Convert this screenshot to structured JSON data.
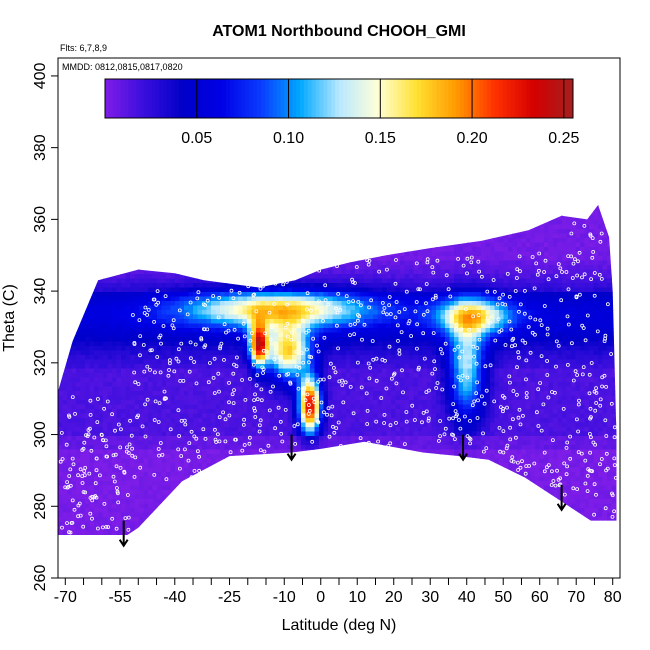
{
  "chart_data": {
    "type": "heatmap",
    "title": "ATOM1 Northbound CHOOH_GMI",
    "xlabel": "Latitude (deg N)",
    "ylabel": "Theta (C)",
    "annotation_flights": "Flts: 6,7,8,9",
    "annotation_dates": "MMDD: 0812,0815,0817,0820",
    "xlim": [
      -72,
      82
    ],
    "ylim": [
      260,
      405
    ],
    "x_ticks": [
      -70,
      -55,
      -40,
      -25,
      -10,
      0,
      10,
      20,
      30,
      40,
      50,
      60,
      70,
      80
    ],
    "x_tick_labels": [
      "-70",
      "-55",
      "-40",
      "-25",
      "-10",
      "0",
      "10",
      "20",
      "30",
      "40",
      "50",
      "60",
      "70",
      "80"
    ],
    "x_minor_ticks": [
      -65,
      -60,
      -50,
      -45,
      -35,
      -30,
      -20,
      -15,
      -5,
      5,
      15,
      25,
      35,
      45,
      55,
      65,
      75
    ],
    "y_ticks": [
      260,
      280,
      300,
      320,
      340,
      360,
      380,
      400
    ],
    "y_tick_labels": [
      "260",
      "280",
      "300",
      "320",
      "340",
      "360",
      "380",
      "400"
    ],
    "colorbar": {
      "min": 0.0,
      "max": 0.255,
      "ticks": [
        0.05,
        0.1,
        0.15,
        0.2,
        0.25
      ],
      "tick_labels": [
        "0.05",
        "0.10",
        "0.15",
        "0.20",
        "0.25"
      ],
      "colors": [
        "#7F1DE8",
        "#3A0EDD",
        "#0000C8",
        "#0000E6",
        "#0A3CFF",
        "#00A8FF",
        "#B8E8FF",
        "#FFFFD8",
        "#FFE030",
        "#FF9A00",
        "#FF3000",
        "#D40000",
        "#A52020"
      ]
    },
    "field_lower_boundary": [
      [
        -72,
        272
      ],
      [
        -53,
        272
      ],
      [
        -50,
        274
      ],
      [
        -38,
        287
      ],
      [
        -25,
        294
      ],
      [
        -8,
        295
      ],
      [
        0,
        296
      ],
      [
        12,
        298
      ],
      [
        28,
        295
      ],
      [
        38,
        294
      ],
      [
        46,
        293
      ],
      [
        56,
        288
      ],
      [
        68,
        280
      ],
      [
        74,
        276
      ],
      [
        80,
        276
      ]
    ],
    "field_upper_boundary": [
      [
        -72,
        312
      ],
      [
        -68,
        326
      ],
      [
        -61,
        343
      ],
      [
        -50,
        346
      ],
      [
        -40,
        345
      ],
      [
        -32,
        343
      ],
      [
        -17,
        341
      ],
      [
        -7,
        343
      ],
      [
        0,
        346
      ],
      [
        8,
        348
      ],
      [
        18,
        350
      ],
      [
        30,
        352
      ],
      [
        44,
        354
      ],
      [
        57,
        357
      ],
      [
        66,
        361
      ],
      [
        73,
        360
      ],
      [
        76,
        364
      ],
      [
        79,
        355
      ],
      [
        80,
        340
      ],
      [
        81,
        300
      ],
      [
        81,
        276
      ]
    ],
    "hotspots": [
      {
        "lat": -3,
        "theta": 308,
        "value": 0.24,
        "dlat": 3,
        "dtheta": 8
      },
      {
        "lat": -17,
        "theta": 325,
        "value": 0.21,
        "dlat": 2.5,
        "dtheta": 6
      },
      {
        "lat": -9,
        "theta": 323,
        "value": 0.16,
        "dlat": 6,
        "dtheta": 8
      },
      {
        "lat": 40,
        "theta": 318,
        "value": 0.12,
        "dlat": 5,
        "dtheta": 14
      },
      {
        "lat": -12,
        "theta": 335,
        "value": 0.13,
        "dlat": 25,
        "dtheta": 5
      },
      {
        "lat": 42,
        "theta": 333,
        "value": 0.12,
        "dlat": 10,
        "dtheta": 5
      }
    ],
    "flight_tracks": [
      {
        "lat_range": [
          -72,
          -52
        ],
        "theta_range": [
          272,
          312
        ]
      },
      {
        "lat_range": [
          -52,
          -32
        ],
        "theta_range": [
          286,
          340
        ]
      },
      {
        "lat_range": [
          -32,
          -12
        ],
        "theta_range": [
          295,
          345
        ]
      },
      {
        "lat_range": [
          -12,
          10
        ],
        "theta_range": [
          296,
          347
        ]
      },
      {
        "lat_range": [
          10,
          32
        ],
        "theta_range": [
          296,
          350
        ]
      },
      {
        "lat_range": [
          32,
          52
        ],
        "theta_range": [
          293,
          350
        ]
      },
      {
        "lat_range": [
          52,
          68
        ],
        "theta_range": [
          283,
          352
        ]
      },
      {
        "lat_range": [
          68,
          81
        ],
        "theta_range": [
          276,
          362
        ]
      }
    ],
    "arrows": [
      {
        "lat": -54,
        "theta_top": 276,
        "theta_tip": 269
      },
      {
        "lat": -8,
        "theta_top": 300,
        "theta_tip": 293
      },
      {
        "lat": 39,
        "theta_top": 300,
        "theta_tip": 293
      },
      {
        "lat": 66,
        "theta_top": 286,
        "theta_tip": 279
      }
    ]
  }
}
